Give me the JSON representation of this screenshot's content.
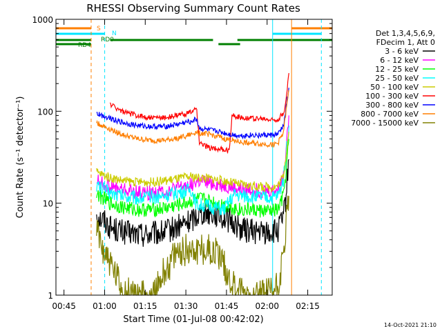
{
  "chart_data": {
    "type": "line",
    "title": "RHESSI Observing Summary Count Rates",
    "xlabel": "Start Time (01-Jul-08 00:42:02)",
    "ylabel": "Count Rate (s⁻¹ detector⁻¹)",
    "scale_y": "log",
    "ylim": [
      1,
      1000
    ],
    "xlim_minutes": [
      0,
      102
    ],
    "x_tick_labels": [
      "00:45",
      "01:00",
      "01:15",
      "01:30",
      "01:45",
      "02:00",
      "02:15"
    ],
    "x_tick_minutes": [
      2.97,
      17.97,
      32.97,
      47.97,
      62.97,
      77.97,
      92.97
    ],
    "y_tick_labels": [
      "1",
      "10",
      "100",
      "1000"
    ],
    "y_tick_values": [
      1,
      10,
      100,
      1000
    ],
    "legend_title": [
      "Det 1,3,4,5,6,9,",
      "FDecim 1, Att 0"
    ],
    "legend_position": "right",
    "timestamp": "14-Oct-2021 21:10",
    "flags": [
      {
        "label": "S",
        "color": "#ff7f00",
        "segments": [
          [
            0,
            13
          ],
          [
            87,
            102
          ]
        ]
      },
      {
        "label": "N",
        "color": "#00e5ff",
        "segments": [
          [
            0,
            18
          ],
          [
            80,
            98
          ]
        ]
      },
      {
        "label": "RD0",
        "color": "#007f00",
        "segments": [
          [
            0,
            13
          ],
          [
            20,
            58
          ],
          [
            67,
            102
          ]
        ]
      },
      {
        "label": "RD4",
        "color": "#007f00",
        "segments": [
          [
            0,
            13
          ],
          [
            60,
            68
          ]
        ]
      }
    ],
    "vertical_markers": [
      {
        "minute": 0,
        "color": "#00e5ff",
        "style": "solid"
      },
      {
        "minute": 13,
        "color": "#ff7f00",
        "style": "dashed"
      },
      {
        "minute": 18,
        "color": "#00e5ff",
        "style": "dashed"
      },
      {
        "minute": 80,
        "color": "#00e5ff",
        "style": "solid"
      },
      {
        "minute": 87,
        "color": "#ff7f00",
        "style": "solid"
      },
      {
        "minute": 98,
        "color": "#00e5ff",
        "style": "dashed"
      }
    ],
    "series": [
      {
        "name": "3 - 6 keV",
        "color": "#000000",
        "points": [
          [
            15,
            8
          ],
          [
            16,
            7
          ],
          [
            18,
            6.5
          ],
          [
            20,
            5.5
          ],
          [
            25,
            4.8
          ],
          [
            30,
            4.6
          ],
          [
            35,
            4.6
          ],
          [
            40,
            4.8
          ],
          [
            45,
            5.5
          ],
          [
            50,
            6.5
          ],
          [
            52,
            7.5
          ],
          [
            54,
            8
          ],
          [
            57,
            8
          ],
          [
            62,
            7
          ],
          [
            66,
            6
          ],
          [
            68,
            5.3
          ],
          [
            72,
            5
          ],
          [
            77,
            4.8
          ],
          [
            80,
            4.8
          ],
          [
            82,
            5
          ],
          [
            84,
            7
          ],
          [
            85,
            12
          ],
          [
            86,
            30
          ]
        ]
      },
      {
        "name": "6 - 12 keV",
        "color": "#ff00ff",
        "points": [
          [
            15,
            18
          ],
          [
            16,
            17
          ],
          [
            18,
            16
          ],
          [
            20,
            15
          ],
          [
            25,
            14
          ],
          [
            30,
            13
          ],
          [
            35,
            13
          ],
          [
            40,
            13.5
          ],
          [
            45,
            14.5
          ],
          [
            50,
            16
          ],
          [
            52,
            17
          ],
          [
            54,
            17
          ],
          [
            57,
            16.5
          ],
          [
            62,
            15.5
          ],
          [
            66,
            14.5
          ],
          [
            68,
            14
          ],
          [
            72,
            14
          ],
          [
            77,
            13.5
          ],
          [
            80,
            13.5
          ],
          [
            82,
            14
          ],
          [
            84,
            20
          ],
          [
            85,
            40
          ],
          [
            86,
            90
          ]
        ]
      },
      {
        "name": "12 - 25 keV",
        "color": "#00ff00",
        "points": [
          [
            15,
            13
          ],
          [
            16,
            12
          ],
          [
            18,
            11
          ],
          [
            20,
            10
          ],
          [
            25,
            9
          ],
          [
            30,
            8.5
          ],
          [
            35,
            8.5
          ],
          [
            40,
            8.8
          ],
          [
            45,
            9.5
          ],
          [
            50,
            10.5
          ],
          [
            52,
            11
          ],
          [
            54,
            11
          ],
          [
            57,
            10.5
          ],
          [
            62,
            9.5
          ],
          [
            66,
            8.8
          ],
          [
            68,
            8.5
          ],
          [
            72,
            8.5
          ],
          [
            77,
            8.2
          ],
          [
            80,
            8.2
          ],
          [
            82,
            8.5
          ],
          [
            84,
            12
          ],
          [
            85,
            22
          ],
          [
            86,
            50
          ]
        ]
      },
      {
        "name": "25 - 50 keV",
        "color": "#00ffff",
        "points": [
          [
            15,
            16
          ],
          [
            16,
            15
          ],
          [
            18,
            14
          ],
          [
            20,
            13
          ],
          [
            25,
            12
          ],
          [
            30,
            11.5
          ],
          [
            35,
            11.5
          ],
          [
            40,
            12
          ],
          [
            45,
            13
          ],
          [
            50,
            14
          ],
          [
            52,
            9.5
          ],
          [
            54,
            9.5
          ],
          [
            57,
            9.2
          ],
          [
            62,
            8.5
          ],
          [
            66,
            12.5
          ],
          [
            68,
            12
          ],
          [
            72,
            11.8
          ],
          [
            77,
            11.5
          ],
          [
            80,
            11.5
          ],
          [
            82,
            12
          ],
          [
            84,
            18
          ],
          [
            85,
            35
          ],
          [
            86,
            70
          ]
        ]
      },
      {
        "name": "50 - 100 keV",
        "color": "#cccc00",
        "points": [
          [
            15,
            22
          ],
          [
            16,
            21
          ],
          [
            18,
            20
          ],
          [
            20,
            19
          ],
          [
            25,
            17.5
          ],
          [
            30,
            17
          ],
          [
            35,
            17
          ],
          [
            40,
            17.5
          ],
          [
            45,
            18.5
          ],
          [
            50,
            19.5
          ],
          [
            52,
            19
          ],
          [
            54,
            19
          ],
          [
            57,
            18.5
          ],
          [
            62,
            17.5
          ],
          [
            66,
            16.5
          ],
          [
            68,
            16
          ],
          [
            72,
            15.5
          ],
          [
            77,
            15
          ],
          [
            80,
            15
          ],
          [
            82,
            15.5
          ],
          [
            84,
            20
          ],
          [
            85,
            35
          ],
          [
            86,
            60
          ]
        ]
      },
      {
        "name": "100 - 300 keV",
        "color": "#ff0000",
        "points": [
          [
            20,
            120
          ],
          [
            22,
            110
          ],
          [
            25,
            98
          ],
          [
            30,
            90
          ],
          [
            35,
            85
          ],
          [
            40,
            85
          ],
          [
            45,
            90
          ],
          [
            50,
            98
          ],
          [
            52,
            105
          ],
          [
            53,
            45
          ],
          [
            55,
            42
          ],
          [
            57,
            40
          ],
          [
            60,
            39
          ],
          [
            62,
            38
          ],
          [
            64,
            37
          ],
          [
            65,
            90
          ],
          [
            68,
            86
          ],
          [
            72,
            84
          ],
          [
            77,
            82
          ],
          [
            80,
            80
          ],
          [
            82,
            82
          ],
          [
            84,
            95
          ],
          [
            85,
            130
          ],
          [
            86,
            260
          ]
        ]
      },
      {
        "name": "300 - 800 keV",
        "color": "#0000ff",
        "points": [
          [
            15,
            95
          ],
          [
            16,
            92
          ],
          [
            18,
            88
          ],
          [
            20,
            85
          ],
          [
            22,
            80
          ],
          [
            25,
            75
          ],
          [
            30,
            70
          ],
          [
            35,
            68
          ],
          [
            40,
            68
          ],
          [
            45,
            72
          ],
          [
            50,
            78
          ],
          [
            52,
            82
          ],
          [
            53,
            65
          ],
          [
            57,
            62
          ],
          [
            60,
            60
          ],
          [
            62,
            58
          ],
          [
            64,
            56
          ],
          [
            66,
            55
          ],
          [
            68,
            54
          ],
          [
            72,
            55
          ],
          [
            77,
            55
          ],
          [
            80,
            55
          ],
          [
            82,
            56
          ],
          [
            84,
            70
          ],
          [
            85,
            110
          ],
          [
            86,
            180
          ]
        ]
      },
      {
        "name": "800 - 7000 keV",
        "color": "#ff7f00",
        "points": [
          [
            15,
            75
          ],
          [
            16,
            72
          ],
          [
            18,
            68
          ],
          [
            20,
            64
          ],
          [
            22,
            60
          ],
          [
            25,
            55
          ],
          [
            30,
            50
          ],
          [
            35,
            48
          ],
          [
            40,
            48
          ],
          [
            45,
            51
          ],
          [
            50,
            56
          ],
          [
            52,
            60
          ],
          [
            53,
            58
          ],
          [
            57,
            56
          ],
          [
            60,
            53
          ],
          [
            62,
            50
          ],
          [
            64,
            49
          ],
          [
            66,
            48
          ],
          [
            68,
            46
          ],
          [
            72,
            45
          ],
          [
            77,
            44
          ],
          [
            80,
            43
          ],
          [
            82,
            45
          ],
          [
            84,
            60
          ],
          [
            85,
            100
          ],
          [
            86,
            170
          ]
        ]
      },
      {
        "name": "7000 - 15000 keV",
        "color": "#808000",
        "points": [
          [
            15,
            5
          ],
          [
            16,
            4
          ],
          [
            18,
            3
          ],
          [
            20,
            2.2
          ],
          [
            22,
            1.6
          ],
          [
            24,
            1.2
          ],
          [
            26,
            1.05
          ],
          [
            30,
            1
          ],
          [
            36,
            1
          ],
          [
            38,
            1.3
          ],
          [
            40,
            1.8
          ],
          [
            42,
            2.2
          ],
          [
            44,
            2.6
          ],
          [
            46,
            3
          ],
          [
            50,
            3.2
          ],
          [
            54,
            3.2
          ],
          [
            57,
            3.1
          ],
          [
            60,
            2.8
          ],
          [
            62,
            2.2
          ],
          [
            64,
            1.5
          ],
          [
            66,
            1.2
          ],
          [
            68,
            1.1
          ],
          [
            72,
            1
          ],
          [
            77,
            1.05
          ],
          [
            80,
            1.1
          ],
          [
            82,
            1.3
          ],
          [
            84,
            2.5
          ],
          [
            85,
            6
          ],
          [
            86,
            12
          ]
        ]
      }
    ]
  }
}
